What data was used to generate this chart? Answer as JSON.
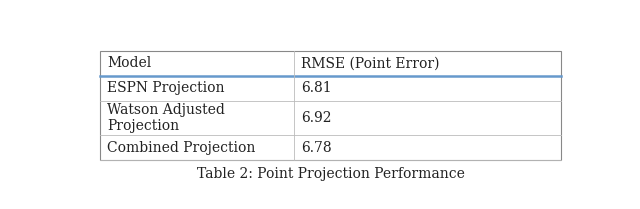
{
  "title": "Table 2: Point Projection Performance",
  "col_headers": [
    "Model",
    "RMSE (Point Error)"
  ],
  "rows": [
    [
      "ESPN Projection",
      "6.81"
    ],
    [
      "Watson Adjusted\nProjection",
      "6.92"
    ],
    [
      "Combined Projection",
      "6.78"
    ]
  ],
  "header_line_color": "#6699cc",
  "grid_color": "#bbbbbb",
  "outer_border_color": "#888888",
  "bg_color": "#ffffff",
  "text_color": "#222222",
  "title_fontsize": 10,
  "cell_fontsize": 10,
  "header_fontsize": 10,
  "col_split": 0.42,
  "figsize": [
    6.4,
    2.09
  ],
  "dpi": 100
}
